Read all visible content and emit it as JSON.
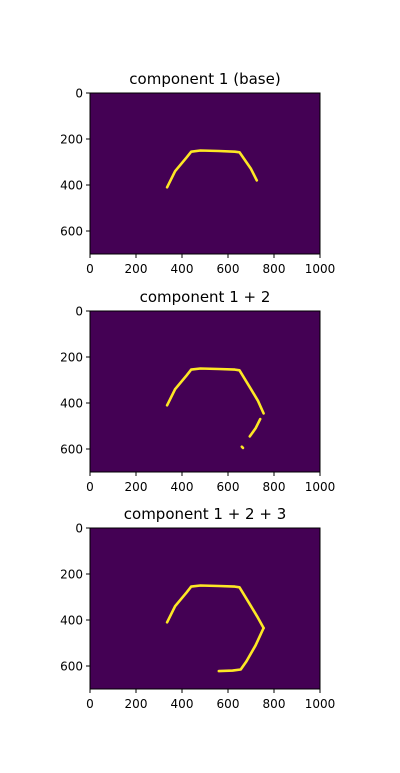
{
  "colors": {
    "background_field": "#440154",
    "foreground_mask": "#fde725",
    "axis": "#000000"
  },
  "chart_data": [
    {
      "type": "heatmap",
      "title": "component 1 (base)",
      "xlim": [
        0,
        1000
      ],
      "ylim": [
        700,
        0
      ],
      "xticks": [
        0,
        200,
        400,
        600,
        800,
        1000
      ],
      "yticks": [
        0,
        200,
        400,
        600
      ],
      "xtick_labels": [
        "0",
        "200",
        "400",
        "600",
        "800",
        "1000"
      ],
      "ytick_labels": [
        "0",
        "200",
        "400",
        "600"
      ],
      "strokes": [
        [
          [
            335,
            410
          ],
          [
            370,
            340
          ],
          [
            420,
            280
          ],
          [
            440,
            255
          ],
          [
            480,
            250
          ],
          [
            560,
            252
          ],
          [
            630,
            255
          ],
          [
            650,
            258
          ],
          [
            700,
            330
          ],
          [
            725,
            380
          ]
        ]
      ]
    },
    {
      "type": "heatmap",
      "title": "component 1 + 2",
      "xlim": [
        0,
        1000
      ],
      "ylim": [
        700,
        0
      ],
      "xticks": [
        0,
        200,
        400,
        600,
        800,
        1000
      ],
      "yticks": [
        0,
        200,
        400,
        600
      ],
      "xtick_labels": [
        "0",
        "200",
        "400",
        "600",
        "800",
        "1000"
      ],
      "ytick_labels": [
        "0",
        "200",
        "400",
        "600"
      ],
      "strokes": [
        [
          [
            335,
            410
          ],
          [
            370,
            340
          ],
          [
            420,
            280
          ],
          [
            440,
            255
          ],
          [
            480,
            250
          ],
          [
            560,
            252
          ],
          [
            630,
            255
          ],
          [
            650,
            258
          ],
          [
            700,
            340
          ],
          [
            730,
            390
          ],
          [
            755,
            445
          ]
        ],
        [
          [
            740,
            470
          ],
          [
            720,
            510
          ],
          [
            695,
            545
          ]
        ],
        [
          [
            660,
            590
          ],
          [
            665,
            595
          ]
        ]
      ]
    },
    {
      "type": "heatmap",
      "title": "component 1 + 2 + 3",
      "xlim": [
        0,
        1000
      ],
      "ylim": [
        700,
        0
      ],
      "xticks": [
        0,
        200,
        400,
        600,
        800,
        1000
      ],
      "yticks": [
        0,
        200,
        400,
        600
      ],
      "xtick_labels": [
        "0",
        "200",
        "400",
        "600",
        "800",
        "1000"
      ],
      "ytick_labels": [
        "0",
        "200",
        "400",
        "600"
      ],
      "strokes": [
        [
          [
            335,
            410
          ],
          [
            370,
            340
          ],
          [
            420,
            280
          ],
          [
            440,
            255
          ],
          [
            480,
            250
          ],
          [
            560,
            252
          ],
          [
            630,
            255
          ],
          [
            650,
            258
          ],
          [
            700,
            340
          ],
          [
            730,
            390
          ],
          [
            755,
            435
          ]
        ],
        [
          [
            755,
            435
          ],
          [
            720,
            510
          ],
          [
            680,
            580
          ],
          [
            655,
            615
          ],
          [
            620,
            620
          ],
          [
            560,
            622
          ]
        ]
      ]
    }
  ]
}
